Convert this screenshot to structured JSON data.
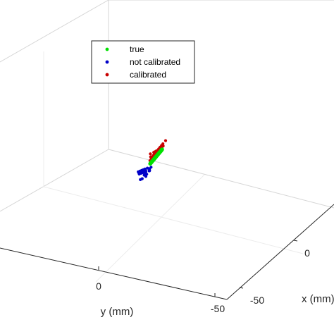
{
  "chart_data": {
    "type": "scatter",
    "projection": "3d",
    "grid": true,
    "legend_placement": "top-center",
    "xlabel": "x (mm)",
    "ylabel": "y (mm)",
    "x_ticks": [
      "0",
      "-50"
    ],
    "y_ticks": [
      "0",
      "-50"
    ],
    "series": [
      {
        "name": "true",
        "color": "#00e000",
        "marker": "filled-circle",
        "points": [
          [
            -45,
            -58,
            2
          ],
          [
            -43,
            -56,
            2
          ],
          [
            -41,
            -54,
            2
          ],
          [
            -39,
            -52,
            2
          ],
          [
            -37,
            -50,
            2
          ],
          [
            -35,
            -48,
            2
          ],
          [
            -33,
            -46,
            2
          ],
          [
            -31,
            -44,
            2
          ],
          [
            -29,
            -42,
            2
          ],
          [
            -27,
            -40,
            2
          ],
          [
            -25,
            -38,
            2
          ],
          [
            -23,
            -36,
            2
          ],
          [
            -21,
            -34,
            2
          ],
          [
            -19,
            -32,
            2
          ],
          [
            -17,
            -30,
            2
          ],
          [
            -15,
            -28,
            2
          ],
          [
            -13,
            -26,
            2
          ],
          [
            -11,
            -24,
            2
          ],
          [
            -9,
            -22,
            2
          ],
          [
            -7,
            -20,
            2
          ],
          [
            -5,
            -18,
            2
          ],
          [
            -3,
            -16,
            2
          ],
          [
            -1,
            -14,
            2
          ],
          [
            1,
            -12,
            2
          ],
          [
            3,
            -10,
            2
          ],
          [
            5,
            -8,
            2
          ],
          [
            7,
            -6,
            2
          ],
          [
            9,
            -4,
            2
          ],
          [
            11,
            -2,
            2
          ],
          [
            13,
            0,
            2
          ],
          [
            15,
            2,
            2
          ],
          [
            17,
            4,
            2
          ],
          [
            19,
            6,
            2
          ],
          [
            21,
            8,
            2
          ],
          [
            23,
            10,
            2
          ],
          [
            25,
            12,
            2
          ],
          [
            27,
            14,
            2
          ],
          [
            29,
            16,
            2
          ],
          [
            31,
            18,
            2
          ],
          [
            33,
            20,
            2
          ],
          [
            35,
            22,
            2
          ],
          [
            37,
            24,
            2
          ],
          [
            39,
            26,
            2
          ]
        ]
      },
      {
        "name": "not calibrated",
        "color": "#0000c8",
        "marker": "filled-circle",
        "points": [
          [
            -40,
            -58,
            -3
          ],
          [
            -37,
            -55,
            -4
          ],
          [
            -34,
            -53,
            -2
          ],
          [
            -31,
            -50,
            -5
          ],
          [
            -29,
            -48,
            -3
          ],
          [
            -26,
            -46,
            -4
          ],
          [
            -23,
            -44,
            -2
          ],
          [
            -21,
            -41,
            -5
          ],
          [
            -18,
            -39,
            -3
          ],
          [
            -15,
            -37,
            -4
          ],
          [
            -12,
            -35,
            -2
          ],
          [
            -10,
            -32,
            -5
          ],
          [
            -7,
            -30,
            -3
          ],
          [
            -4,
            -28,
            -4
          ],
          [
            -2,
            -25,
            -2
          ],
          [
            1,
            -23,
            -5
          ],
          [
            4,
            -21,
            -3
          ],
          [
            7,
            -19,
            -4
          ],
          [
            10,
            -16,
            -2
          ],
          [
            13,
            -14,
            -5
          ],
          [
            16,
            -12,
            -3
          ],
          [
            19,
            -9,
            -4
          ],
          [
            22,
            -7,
            -2
          ],
          [
            25,
            -5,
            -5
          ],
          [
            28,
            -3,
            -3
          ],
          [
            31,
            0,
            -4
          ],
          [
            34,
            2,
            -2
          ],
          [
            37,
            4,
            -5
          ],
          [
            40,
            7,
            -3
          ],
          [
            43,
            9,
            -4
          ],
          [
            46,
            11,
            -2
          ],
          [
            48,
            14,
            -3
          ],
          [
            -35,
            -58,
            -8
          ],
          [
            -30,
            -52,
            -9
          ],
          [
            -24,
            -45,
            -7
          ],
          [
            -14,
            -34,
            -9
          ],
          [
            -5,
            -24,
            -8
          ],
          [
            6,
            -14,
            -9
          ],
          [
            17,
            -3,
            -7
          ],
          [
            29,
            6,
            -8
          ],
          [
            39,
            13,
            -6
          ],
          [
            -42,
            -60,
            -6
          ],
          [
            -28,
            -47,
            -10
          ],
          [
            -10,
            -28,
            -7
          ]
        ]
      },
      {
        "name": "calibrated",
        "color": "#c80000",
        "marker": "filled-circle",
        "points": [
          [
            -47,
            -60,
            6
          ],
          [
            -45,
            -57,
            4
          ],
          [
            -43,
            -55,
            8
          ],
          [
            -40,
            -52,
            5
          ],
          [
            -38,
            -51,
            7
          ],
          [
            -35,
            -47,
            4
          ],
          [
            -33,
            -45,
            8
          ],
          [
            -30,
            -42,
            5
          ],
          [
            -28,
            -41,
            6
          ],
          [
            -25,
            -38,
            4
          ],
          [
            -23,
            -35,
            8
          ],
          [
            -20,
            -32,
            5
          ],
          [
            -18,
            -31,
            7
          ],
          [
            -15,
            -27,
            4
          ],
          [
            -13,
            -25,
            8
          ],
          [
            -10,
            -22,
            5
          ],
          [
            -8,
            -21,
            6
          ],
          [
            -5,
            -18,
            4
          ],
          [
            -3,
            -15,
            8
          ],
          [
            0,
            -12,
            5
          ],
          [
            2,
            -11,
            7
          ],
          [
            5,
            -7,
            4
          ],
          [
            7,
            -5,
            8
          ],
          [
            10,
            -2,
            5
          ],
          [
            12,
            -1,
            6
          ],
          [
            15,
            2,
            4
          ],
          [
            17,
            5,
            8
          ],
          [
            20,
            8,
            5
          ],
          [
            22,
            9,
            7
          ],
          [
            25,
            13,
            4
          ],
          [
            27,
            15,
            8
          ],
          [
            30,
            18,
            5
          ],
          [
            32,
            19,
            6
          ],
          [
            35,
            22,
            4
          ],
          [
            37,
            25,
            8
          ],
          [
            39,
            27,
            5
          ],
          [
            -50,
            -62,
            10
          ],
          [
            -44,
            -54,
            12
          ],
          [
            -36,
            -46,
            11
          ],
          [
            -26,
            -36,
            10
          ],
          [
            -52,
            -64,
            14
          ],
          [
            40,
            30,
            9
          ]
        ]
      }
    ]
  }
}
